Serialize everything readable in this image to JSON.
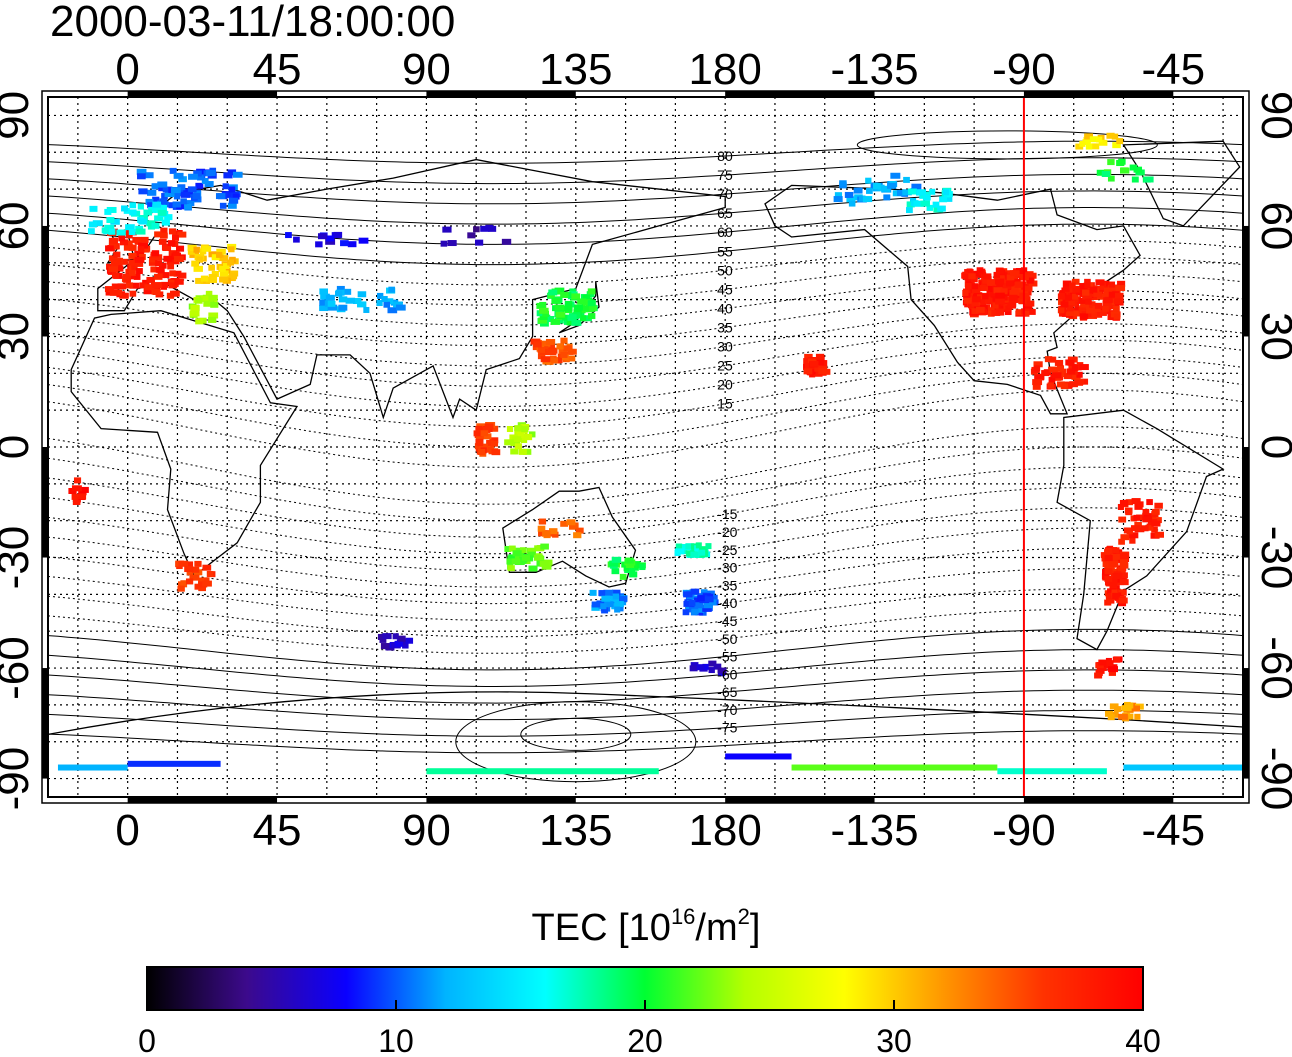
{
  "title": "2000-03-11/18:00:00",
  "map": {
    "projection": "equirectangular",
    "lon_range": [
      -24,
      336
    ],
    "lat_range": [
      -95,
      95
    ],
    "x_tick_lons": [
      0,
      45,
      90,
      135,
      180,
      225,
      270,
      315
    ],
    "x_tick_labels": [
      "0",
      "45",
      "90",
      "135",
      "180",
      "-135",
      "-90",
      "-45"
    ],
    "y_ticks": [
      90,
      60,
      30,
      0,
      -30,
      -60,
      -90
    ],
    "y_tick_labels": [
      "90",
      "60",
      "30",
      "0",
      "-30",
      "-60",
      "-90"
    ],
    "grid_lon_step": 15,
    "grid_lat_step": 10,
    "grid": true,
    "grid_style": "dotted",
    "frame_band": "black-white alternating every 45 degrees",
    "coastlines": true,
    "magnetic_latitude_contours": {
      "labels": [
        "80",
        "75",
        "70",
        "65",
        "60",
        "55",
        "50",
        "45",
        "40",
        "35",
        "30",
        "25",
        "20",
        "15",
        "-15",
        "-20",
        "-25",
        "-30",
        "-35",
        "-40",
        "-45",
        "-50",
        "-55",
        "-60",
        "-65",
        "-70",
        "-75"
      ],
      "label_lon": 180
    },
    "marker_meridian": {
      "label_lon_deg": -90,
      "color": "#ff0000"
    }
  },
  "colorbar": {
    "title_text": "TEC  [10",
    "title_exp": "16",
    "title_unit": "/m",
    "title_unit_exp": "2",
    "title_close": "]",
    "min": 0,
    "max": 40,
    "tick_values": [
      0,
      10,
      20,
      30,
      40
    ],
    "tick_labels": [
      "0",
      "10",
      "20",
      "30",
      "40"
    ],
    "colormap": [
      "#000000",
      "#3c0a8c",
      "#0a00ff",
      "#00b4ff",
      "#00ffff",
      "#00ff32",
      "#b4ff00",
      "#ffff00",
      "#ff9600",
      "#ff3200",
      "#ff0000"
    ]
  },
  "chart_data": {
    "type": "heatmap",
    "value": "TEC (10^16/m^2)",
    "patches": [
      {
        "lon": 5,
        "lat": 50,
        "w": 22,
        "h": 18,
        "value": 38,
        "n": 140
      },
      {
        "lon": 25,
        "lat": 50,
        "w": 14,
        "h": 10,
        "value": 30,
        "n": 45
      },
      {
        "lon": 22,
        "lat": 38,
        "w": 8,
        "h": 8,
        "value": 24,
        "n": 20
      },
      {
        "lon": 18,
        "lat": 70,
        "w": 30,
        "h": 10,
        "value": 10,
        "n": 80
      },
      {
        "lon": 0,
        "lat": 62,
        "w": 25,
        "h": 8,
        "value": 16,
        "n": 40
      },
      {
        "lon": 70,
        "lat": 40,
        "w": 25,
        "h": 6,
        "value": 12,
        "n": 35
      },
      {
        "lon": 60,
        "lat": 57,
        "w": 25,
        "h": 4,
        "value": 7,
        "n": 12
      },
      {
        "lon": 105,
        "lat": 57,
        "w": 20,
        "h": 5,
        "value": 5,
        "n": 10
      },
      {
        "lon": 132,
        "lat": 38,
        "w": 16,
        "h": 9,
        "value": 20,
        "n": 75
      },
      {
        "lon": 128,
        "lat": 26,
        "w": 12,
        "h": 6,
        "value": 35,
        "n": 40
      },
      {
        "lon": 108,
        "lat": 2,
        "w": 6,
        "h": 8,
        "value": 36,
        "n": 35
      },
      {
        "lon": 118,
        "lat": 2,
        "w": 8,
        "h": 8,
        "value": 24,
        "n": 20
      },
      {
        "lon": 130,
        "lat": -22,
        "w": 12,
        "h": 4,
        "value": 34,
        "n": 15
      },
      {
        "lon": 120,
        "lat": -30,
        "w": 12,
        "h": 6,
        "value": 22,
        "n": 35
      },
      {
        "lon": 145,
        "lat": -42,
        "w": 10,
        "h": 5,
        "value": 11,
        "n": 30
      },
      {
        "lon": 150,
        "lat": -33,
        "w": 10,
        "h": 5,
        "value": 20,
        "n": 22
      },
      {
        "lon": 170,
        "lat": -28,
        "w": 10,
        "h": 3,
        "value": 17,
        "n": 30
      },
      {
        "lon": 172,
        "lat": -42,
        "w": 8,
        "h": 6,
        "value": 10,
        "n": 45
      },
      {
        "lon": 262,
        "lat": 42,
        "w": 20,
        "h": 12,
        "value": 38,
        "n": 220
      },
      {
        "lon": 290,
        "lat": 40,
        "w": 18,
        "h": 10,
        "value": 38,
        "n": 140
      },
      {
        "lon": 280,
        "lat": 20,
        "w": 16,
        "h": 8,
        "value": 38,
        "n": 45
      },
      {
        "lon": 207,
        "lat": 22,
        "w": 6,
        "h": 5,
        "value": 38,
        "n": 30
      },
      {
        "lon": 297,
        "lat": -35,
        "w": 6,
        "h": 15,
        "value": 38,
        "n": 110
      },
      {
        "lon": 305,
        "lat": -20,
        "w": 12,
        "h": 12,
        "value": 38,
        "n": 40
      },
      {
        "lon": 295,
        "lat": -60,
        "w": 6,
        "h": 5,
        "value": 39,
        "n": 20
      },
      {
        "lon": 300,
        "lat": -72,
        "w": 10,
        "h": 4,
        "value": 32,
        "n": 20
      },
      {
        "lon": 225,
        "lat": 70,
        "w": 25,
        "h": 8,
        "value": 12,
        "n": 35
      },
      {
        "lon": 240,
        "lat": 67,
        "w": 15,
        "h": 6,
        "value": 16,
        "n": 25
      },
      {
        "lon": 292,
        "lat": 83,
        "w": 14,
        "h": 3,
        "value": 29,
        "n": 16
      },
      {
        "lon": 300,
        "lat": 75,
        "w": 16,
        "h": 5,
        "value": 20,
        "n": 16
      },
      {
        "lon": 80,
        "lat": -53,
        "w": 10,
        "h": 4,
        "value": 6,
        "n": 14
      },
      {
        "lon": 175,
        "lat": -60,
        "w": 10,
        "h": 3,
        "value": 6,
        "n": 10
      },
      {
        "lon": 20,
        "lat": -35,
        "w": 10,
        "h": 7,
        "value": 36,
        "n": 25
      },
      {
        "lon": -15,
        "lat": -12,
        "w": 4,
        "h": 6,
        "value": 39,
        "n": 10
      }
    ],
    "polar_strips": [
      {
        "lon0": -21,
        "lon1": 0,
        "lat": -87,
        "value": 12
      },
      {
        "lon0": 0,
        "lon1": 28,
        "lat": -86,
        "value": 9
      },
      {
        "lon0": 90,
        "lon1": 160,
        "lat": -88,
        "value": 18
      },
      {
        "lon0": 180,
        "lon1": 200,
        "lat": -84,
        "value": 8
      },
      {
        "lon0": 200,
        "lon1": 262,
        "lat": -87,
        "value": 22
      },
      {
        "lon0": 262,
        "lon1": 295,
        "lat": -88,
        "value": 17
      },
      {
        "lon0": 300,
        "lon1": 336,
        "lat": -87,
        "value": 13
      }
    ]
  }
}
